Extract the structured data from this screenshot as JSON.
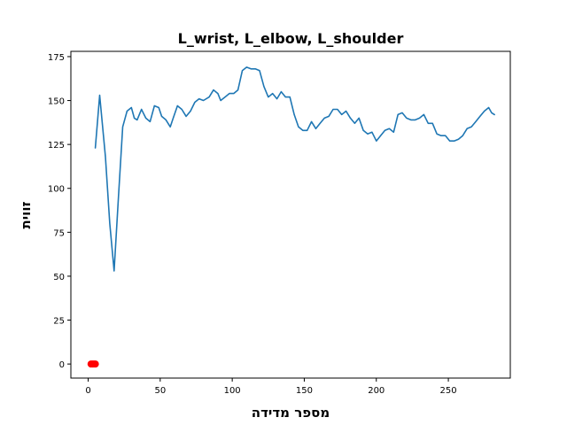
{
  "chart_data": {
    "type": "line",
    "title": "L_wrist, L_elbow, L_shoulder",
    "xlabel": "מספר מדידה",
    "ylabel": "זווית",
    "xlim": [
      -12,
      293
    ],
    "ylim": [
      -8,
      178
    ],
    "xticks": [
      0,
      50,
      100,
      150,
      200,
      250
    ],
    "yticks": [
      0,
      25,
      50,
      75,
      100,
      125,
      150,
      175
    ],
    "grid": false,
    "series": [
      {
        "name": "angle",
        "color": "#1f77b4",
        "x": [
          5,
          8,
          12,
          15,
          18,
          21,
          24,
          27,
          30,
          32,
          34,
          37,
          40,
          43,
          46,
          49,
          51,
          54,
          57,
          59,
          62,
          65,
          68,
          71,
          74,
          77,
          80,
          84,
          87,
          90,
          92,
          95,
          98,
          101,
          104,
          107,
          110,
          113,
          116,
          119,
          122,
          125,
          128,
          131,
          134,
          137,
          140,
          143,
          146,
          149,
          152,
          155,
          158,
          161,
          164,
          167,
          170,
          173,
          176,
          179,
          182,
          185,
          188,
          191,
          194,
          197,
          200,
          203,
          206,
          209,
          212,
          215,
          218,
          221,
          224,
          227,
          230,
          233,
          236,
          239,
          242,
          245,
          248,
          251,
          254,
          257,
          260,
          263,
          266,
          269,
          272,
          275,
          278,
          280,
          282
        ],
        "values": [
          123,
          153,
          118,
          80,
          53,
          95,
          135,
          144,
          146,
          140,
          139,
          145,
          140,
          138,
          147,
          146,
          141,
          139,
          135,
          140,
          147,
          145,
          141,
          144,
          149,
          151,
          150,
          152,
          156,
          154,
          150,
          152,
          154,
          154,
          156,
          167,
          169,
          168,
          168,
          167,
          158,
          152,
          154,
          151,
          155,
          152,
          152,
          142,
          135,
          133,
          133,
          138,
          134,
          137,
          140,
          141,
          145,
          145,
          142,
          144,
          140,
          137,
          140,
          133,
          131,
          132,
          127,
          130,
          133,
          134,
          132,
          142,
          143,
          140,
          139,
          139,
          140,
          142,
          137,
          137,
          131,
          130,
          130,
          127,
          127,
          128,
          130,
          134,
          135,
          138,
          141,
          144,
          146,
          143,
          142
        ]
      },
      {
        "name": "start-marker",
        "color": "#ff0000",
        "x": [
          2,
          3,
          4,
          5
        ],
        "values": [
          0,
          0,
          0,
          0
        ]
      }
    ]
  }
}
